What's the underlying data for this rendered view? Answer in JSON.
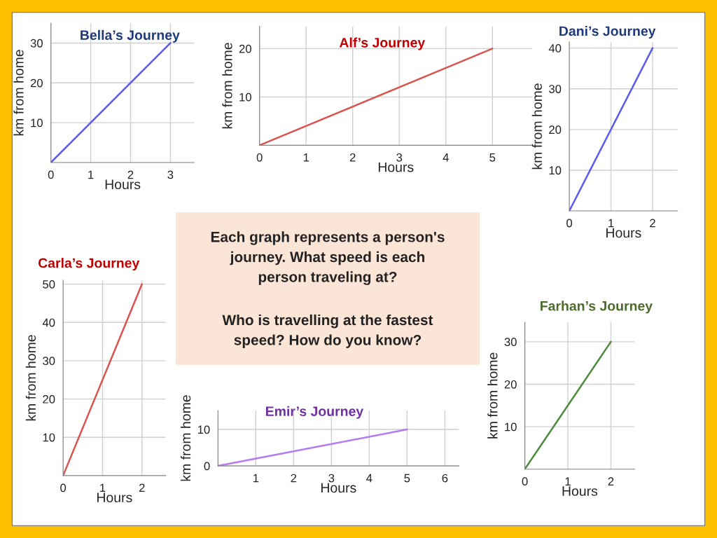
{
  "chart_data": [
    {
      "type": "line",
      "title": "Bella’s Journey",
      "xlabel": "Hours",
      "ylabel": "km from home",
      "x": [
        0,
        3
      ],
      "series": [
        {
          "color": "#5b5bf0",
          "values": [
            0,
            30
          ]
        }
      ],
      "xlim": [
        0,
        3.6
      ],
      "ylim": [
        0,
        35
      ],
      "xticks": [
        0,
        1,
        2,
        3
      ],
      "yticks": [
        10,
        20,
        30
      ],
      "grid": true,
      "legend": false
    },
    {
      "type": "line",
      "title": "Alf’s Journey",
      "xlabel": "Hours",
      "ylabel": "km from home",
      "x": [
        0,
        5
      ],
      "series": [
        {
          "color": "#d9534f",
          "values": [
            0,
            20
          ]
        }
      ],
      "xlim": [
        0,
        5.85
      ],
      "ylim": [
        0,
        24.6
      ],
      "xticks": [
        0,
        1,
        2,
        3,
        4,
        5
      ],
      "yticks": [
        10,
        20
      ],
      "grid": true,
      "legend": false
    },
    {
      "type": "line",
      "title": "Dani’s Journey",
      "xlabel": "Hours",
      "ylabel": "km from home",
      "x": [
        0,
        2
      ],
      "series": [
        {
          "color": "#5b5bf0",
          "values": [
            0,
            40
          ]
        }
      ],
      "xlim": [
        0,
        2.6
      ],
      "ylim": [
        0,
        41.5
      ],
      "xticks": [
        0,
        1,
        2
      ],
      "yticks": [
        10,
        20,
        30,
        40
      ],
      "grid": true,
      "legend": false
    },
    {
      "type": "other",
      "annotations": [
        "Each graph represents a person's\njourney. What speed is each\nperson traveling at?",
        "Who is travelling at the fastest\nspeed? How do you know?"
      ]
    },
    {
      "type": "line",
      "title": "Carla’s Journey",
      "xlabel": "Hours",
      "ylabel": "km from home",
      "x": [
        0,
        2
      ],
      "series": [
        {
          "color": "#d9534f",
          "values": [
            0,
            50
          ]
        }
      ],
      "xlim": [
        0,
        2.6
      ],
      "ylim": [
        0,
        51
      ],
      "xticks": [
        0,
        1,
        2
      ],
      "yticks": [
        10,
        20,
        30,
        40,
        50
      ],
      "grid": true,
      "legend": false
    },
    {
      "type": "line",
      "title": "Emir’s Journey",
      "xlabel": "Hours",
      "ylabel": "km from home",
      "x": [
        0,
        5
      ],
      "series": [
        {
          "color": "#b57bf0",
          "values": [
            0,
            10
          ]
        }
      ],
      "xlim": [
        0,
        6.37
      ],
      "ylim": [
        0,
        15.2
      ],
      "xticks": [
        {
          "value": 0,
          "label": null
        },
        1,
        2,
        3,
        4,
        5,
        6
      ],
      "yticks": [
        0,
        10
      ],
      "grid": true,
      "legend": false
    },
    {
      "type": "line",
      "title": "Farhan’s Journey",
      "xlabel": "Hours",
      "ylabel": "km from home",
      "x": [
        0,
        2
      ],
      "series": [
        {
          "color": "#4e8a3e",
          "values": [
            0,
            30
          ]
        }
      ],
      "xlim": [
        0,
        2.55
      ],
      "ylim": [
        0,
        34.6
      ],
      "xticks": [
        0,
        1,
        2
      ],
      "yticks": [
        10,
        20,
        30
      ],
      "grid": true,
      "legend": false
    }
  ]
}
